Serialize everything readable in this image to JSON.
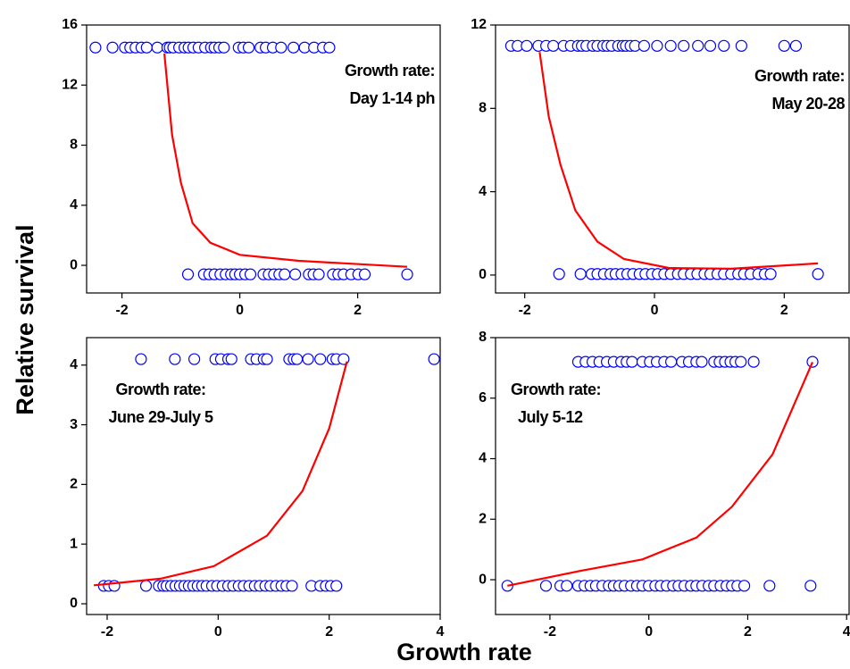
{
  "xlabel": "Growth rate",
  "ylabel": "Relative survival",
  "chart_data": [
    {
      "type": "scatter",
      "annotation": [
        "Growth rate:",
        "Day 1-14 ph"
      ],
      "xlim": [
        -2.6,
        3.4
      ],
      "ylim": [
        -1.84,
        16
      ],
      "xticks": [
        -2,
        0,
        2
      ],
      "yticks": [
        0,
        4,
        8,
        12,
        16
      ],
      "series": [
        {
          "marker": "circle",
          "color": "#0000ff",
          "x": [
            -2.45,
            -2.16,
            -1.95,
            -1.86,
            -1.77,
            -1.67,
            -1.58,
            -1.4,
            -1.23,
            -1.19,
            -1.13,
            -1.03,
            -0.94,
            -0.87,
            -0.79,
            -0.7,
            -0.59,
            -0.49,
            -0.43,
            -0.35,
            -0.27,
            -0.02,
            0.06,
            0.15,
            0.35,
            0.44,
            0.56,
            0.7,
            0.91,
            1.1,
            1.26,
            1.41,
            1.52
          ],
          "values": [
            14.5,
            14.5,
            14.5,
            14.5,
            14.5,
            14.5,
            14.5,
            14.5,
            14.5,
            14.5,
            14.5,
            14.5,
            14.5,
            14.5,
            14.5,
            14.5,
            14.5,
            14.5,
            14.5,
            14.5,
            14.5,
            14.5,
            14.5,
            14.5,
            14.5,
            14.5,
            14.5,
            14.5,
            14.5,
            14.5,
            14.5,
            14.5,
            14.5
          ]
        },
        {
          "marker": "circle",
          "color": "#0000ff",
          "x": [
            -0.88,
            -0.61,
            -0.52,
            -0.43,
            -0.33,
            -0.24,
            -0.15,
            -0.08,
            0,
            0.09,
            0.18,
            0.4,
            0.49,
            0.58,
            0.67,
            0.76,
            0.94,
            1.17,
            1.25,
            1.34,
            1.58,
            1.67,
            1.76,
            1.89,
            2.01,
            2.12,
            2.84
          ],
          "values": [
            -0.6,
            -0.6,
            -0.6,
            -0.6,
            -0.6,
            -0.6,
            -0.6,
            -0.6,
            -0.6,
            -0.6,
            -0.6,
            -0.6,
            -0.6,
            -0.6,
            -0.6,
            -0.6,
            -0.6,
            -0.6,
            -0.6,
            -0.6,
            -0.6,
            -0.6,
            -0.6,
            -0.6,
            -0.6,
            -0.6,
            -0.6
          ]
        },
        {
          "marker": "line",
          "color": "#ff0000",
          "x": [
            -1.28,
            -1.15,
            -1.0,
            -0.8,
            -0.5,
            0,
            1,
            2.84
          ],
          "values": [
            14.1,
            8.7,
            5.5,
            2.8,
            1.5,
            0.7,
            0.3,
            -0.1
          ]
        }
      ]
    },
    {
      "type": "scatter",
      "annotation": [
        "Growth rate:",
        "May 20-28"
      ],
      "xlim": [
        -2.45,
        3.0
      ],
      "ylim": [
        -0.86,
        12
      ],
      "xticks": [
        -2,
        0,
        2
      ],
      "yticks": [
        0,
        4,
        8,
        12
      ],
      "series": [
        {
          "marker": "circle",
          "color": "#0000ff",
          "x": [
            -2.21,
            -2.11,
            -1.97,
            -1.79,
            -1.67,
            -1.56,
            -1.4,
            -1.29,
            -1.18,
            -1.12,
            -1.05,
            -0.95,
            -0.88,
            -0.79,
            -0.73,
            -0.66,
            -0.56,
            -0.49,
            -0.44,
            -0.37,
            -0.3,
            -0.16,
            0.04,
            0.25,
            0.45,
            0.67,
            0.86,
            1.07,
            1.34,
            2.0,
            2.18
          ],
          "values": [
            11,
            11,
            11,
            11,
            11,
            11,
            11,
            11,
            11,
            11,
            11,
            11,
            11,
            11,
            11,
            11,
            11,
            11,
            11,
            11,
            11,
            11,
            11,
            11,
            11,
            11,
            11,
            11,
            11,
            11,
            11
          ]
        },
        {
          "marker": "circle",
          "color": "#0000ff",
          "x": [
            -1.47,
            -1.14,
            -0.97,
            -0.88,
            -0.78,
            -0.68,
            -0.6,
            -0.51,
            -0.42,
            -0.33,
            -0.23,
            -0.14,
            -0.04,
            0.05,
            0.15,
            0.25,
            0.36,
            0.45,
            0.56,
            0.66,
            0.77,
            0.86,
            0.97,
            1.07,
            1.18,
            1.29,
            1.38,
            1.48,
            1.6,
            1.7,
            1.79,
            2.52
          ],
          "values": [
            0.05,
            0.05,
            0.05,
            0.05,
            0.05,
            0.05,
            0.05,
            0.05,
            0.05,
            0.05,
            0.05,
            0.05,
            0.05,
            0.05,
            0.05,
            0.05,
            0.05,
            0.05,
            0.05,
            0.05,
            0.05,
            0.05,
            0.05,
            0.05,
            0.05,
            0.05,
            0.05,
            0.05,
            0.05,
            0.05,
            0.05,
            0.05
          ]
        },
        {
          "marker": "line",
          "color": "#ff0000",
          "x": [
            -1.77,
            -1.63,
            -1.45,
            -1.22,
            -0.88,
            -0.47,
            0.22,
            1.18,
            2.52
          ],
          "values": [
            10.7,
            7.6,
            5.3,
            3.1,
            1.6,
            0.77,
            0.34,
            0.3,
            0.56
          ]
        }
      ]
    },
    {
      "type": "scatter",
      "annotation": [
        "Growth rate:",
        "June 29-July 5"
      ],
      "xlim": [
        -2.37,
        4.0
      ],
      "ylim": [
        -0.18,
        4.46
      ],
      "xticks": [
        -2,
        0,
        2,
        4
      ],
      "yticks": [
        0,
        1,
        2,
        3,
        4
      ],
      "series": [
        {
          "marker": "circle",
          "color": "#0000ff",
          "x": [
            -1.39,
            -0.78,
            -0.43,
            -0.05,
            0.05,
            0.18,
            0.24,
            0.59,
            0.69,
            0.82,
            0.88,
            1.28,
            1.36,
            1.42,
            1.62,
            1.84,
            2.06,
            2.13,
            2.26,
            3.89
          ],
          "values": [
            4.1,
            4.1,
            4.1,
            4.1,
            4.1,
            4.1,
            4.1,
            4.1,
            4.1,
            4.1,
            4.1,
            4.1,
            4.1,
            4.1,
            4.1,
            4.1,
            4.1,
            4.1,
            4.1,
            4.1
          ]
        },
        {
          "marker": "circle",
          "color": "#0000ff",
          "x": [
            -2.06,
            -1.97,
            -1.87,
            -1.3,
            -1.07,
            -0.99,
            -0.93,
            -0.85,
            -0.77,
            -0.69,
            -0.61,
            -0.53,
            -0.45,
            -0.37,
            -0.29,
            -0.21,
            -0.11,
            -0.02,
            0.08,
            0.18,
            0.27,
            0.37,
            0.46,
            0.56,
            0.66,
            0.75,
            0.85,
            0.94,
            1.04,
            1.14,
            1.23,
            1.33,
            1.68,
            1.84,
            1.94,
            2.03,
            2.13
          ],
          "values": [
            0.3,
            0.3,
            0.3,
            0.3,
            0.3,
            0.3,
            0.3,
            0.3,
            0.3,
            0.3,
            0.3,
            0.3,
            0.3,
            0.3,
            0.3,
            0.3,
            0.3,
            0.3,
            0.3,
            0.3,
            0.3,
            0.3,
            0.3,
            0.3,
            0.3,
            0.3,
            0.3,
            0.3,
            0.3,
            0.3,
            0.3,
            0.3,
            0.3,
            0.3,
            0.3,
            0.3,
            0.3
          ]
        },
        {
          "marker": "line",
          "color": "#ff0000",
          "x": [
            -2.24,
            -1.04,
            -0.08,
            0.88,
            1.52,
            2.0,
            2.32
          ],
          "values": [
            0.31,
            0.42,
            0.63,
            1.14,
            1.89,
            2.94,
            4.06
          ]
        }
      ]
    },
    {
      "type": "scatter",
      "annotation": [
        "Growth rate:",
        "July 5-12"
      ],
      "xlim": [
        -3.1,
        4.05
      ],
      "ylim": [
        -1.15,
        8
      ],
      "xticks": [
        -2,
        0,
        2,
        4
      ],
      "yticks": [
        0,
        2,
        4,
        6,
        8
      ],
      "series": [
        {
          "marker": "circle",
          "color": "#0000ff",
          "x": [
            -1.43,
            -1.28,
            -1.14,
            -1.0,
            -0.85,
            -0.71,
            -0.56,
            -0.45,
            -0.34,
            -0.13,
            0.02,
            0.16,
            0.31,
            0.45,
            0.67,
            0.81,
            0.96,
            1.07,
            1.32,
            1.43,
            1.54,
            1.65,
            1.75,
            1.86,
            2.12,
            3.31
          ],
          "values": [
            7.2,
            7.2,
            7.2,
            7.2,
            7.2,
            7.2,
            7.2,
            7.2,
            7.2,
            7.2,
            7.2,
            7.2,
            7.2,
            7.2,
            7.2,
            7.2,
            7.2,
            7.2,
            7.2,
            7.2,
            7.2,
            7.2,
            7.2,
            7.2,
            7.2,
            7.2
          ]
        },
        {
          "marker": "circle",
          "color": "#0000ff",
          "x": [
            -2.86,
            -2.08,
            -1.79,
            -1.66,
            -1.43,
            -1.3,
            -1.18,
            -1.07,
            -0.94,
            -0.81,
            -0.71,
            -0.6,
            -0.49,
            -0.36,
            -0.24,
            -0.13,
            0,
            0.13,
            0.24,
            0.36,
            0.49,
            0.6,
            0.72,
            0.85,
            0.96,
            1.08,
            1.21,
            1.32,
            1.45,
            1.57,
            1.68,
            1.79,
            1.93,
            2.44,
            3.27
          ],
          "values": [
            -0.2,
            -0.2,
            -0.2,
            -0.2,
            -0.2,
            -0.2,
            -0.2,
            -0.2,
            -0.2,
            -0.2,
            -0.2,
            -0.2,
            -0.2,
            -0.2,
            -0.2,
            -0.2,
            -0.2,
            -0.2,
            -0.2,
            -0.2,
            -0.2,
            -0.2,
            -0.2,
            -0.2,
            -0.2,
            -0.2,
            -0.2,
            -0.2,
            -0.2,
            -0.2,
            -0.2,
            -0.2,
            -0.2,
            -0.2,
            -0.2
          ]
        },
        {
          "marker": "line",
          "color": "#ff0000",
          "x": [
            -2.86,
            -1.39,
            -0.13,
            0.96,
            1.68,
            2.5,
            3.31
          ],
          "values": [
            -0.2,
            0.29,
            0.67,
            1.39,
            2.41,
            4.14,
            7.19
          ]
        }
      ]
    }
  ]
}
